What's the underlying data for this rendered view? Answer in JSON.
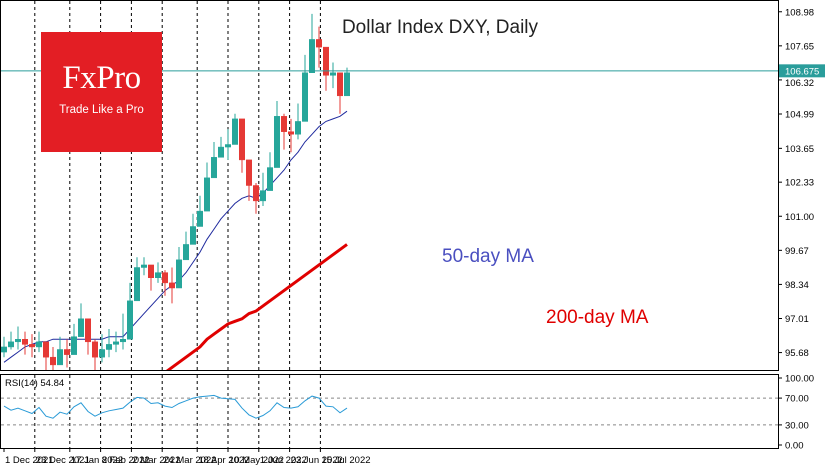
{
  "brand": {
    "logo_text": "FxPro",
    "tagline": "Trade Like a Pro",
    "color": "#e31e24"
  },
  "chart_data": [
    {
      "type": "candlestick",
      "title": "Dollar Index DXY, Daily",
      "x": [
        "2021-12-01",
        "2021-12-06",
        "2021-12-11",
        "2021-12-16",
        "2021-12-21",
        "2021-12-26",
        "2021-12-31",
        "2022-01-05",
        "2022-01-10",
        "2022-01-15",
        "2022-01-20",
        "2022-01-25",
        "2022-01-30",
        "2022-02-04",
        "2022-02-09",
        "2022-02-14",
        "2022-02-19",
        "2022-02-24",
        "2022-03-01",
        "2022-03-06",
        "2022-03-11",
        "2022-03-16",
        "2022-03-21",
        "2022-03-26",
        "2022-03-31",
        "2022-04-05",
        "2022-04-10",
        "2022-04-15",
        "2022-04-20",
        "2022-04-25",
        "2022-04-30",
        "2022-05-05",
        "2022-05-10",
        "2022-05-15",
        "2022-05-20",
        "2022-05-25",
        "2022-05-30",
        "2022-06-04",
        "2022-06-09",
        "2022-06-14",
        "2022-06-19",
        "2022-06-24",
        "2022-06-29",
        "2022-07-04",
        "2022-07-09",
        "2022-07-14",
        "2022-07-19",
        "2022-07-24",
        "2022-07-29",
        "2022-08-03"
      ],
      "close": [
        95.9,
        96.1,
        96.2,
        96.0,
        95.9,
        96.1,
        95.5,
        95.2,
        95.8,
        95.6,
        96.3,
        97.0,
        96.1,
        95.5,
        95.8,
        96.0,
        96.1,
        96.2,
        97.7,
        99.0,
        99.1,
        98.6,
        98.8,
        98.4,
        98.2,
        99.3,
        99.9,
        100.6,
        101.2,
        102.5,
        103.3,
        103.7,
        103.8,
        104.8,
        103.2,
        102.2,
        101.6,
        102.0,
        102.9,
        104.9,
        104.3,
        104.2,
        104.7,
        106.6,
        107.9,
        107.6,
        106.5,
        106.6,
        105.7,
        106.6
      ],
      "high": [
        96.3,
        96.5,
        96.7,
        96.5,
        96.4,
        96.5,
        96.0,
        95.9,
        96.3,
        96.2,
        96.8,
        97.6,
        96.8,
        96.2,
        96.4,
        96.6,
        96.5,
        97.2,
        98.4,
        99.4,
        99.4,
        99.0,
        99.2,
        98.9,
        99.0,
        99.8,
        100.4,
        101.1,
        101.8,
        103.1,
        103.9,
        104.1,
        104.4,
        105.0,
        104.3,
        102.9,
        102.3,
        102.7,
        103.5,
        105.5,
        105.0,
        104.8,
        105.4,
        107.3,
        108.9,
        108.4,
        107.3,
        107.0,
        106.5,
        106.8
      ],
      "low": [
        95.5,
        95.8,
        95.8,
        95.6,
        95.5,
        95.7,
        95.0,
        94.8,
        95.2,
        95.1,
        95.8,
        96.4,
        95.6,
        95.0,
        95.3,
        95.5,
        95.7,
        95.8,
        97.1,
        98.6,
        98.7,
        98.1,
        98.4,
        97.9,
        97.6,
        98.8,
        99.4,
        100.2,
        100.7,
        101.9,
        102.7,
        103.3,
        103.2,
        104.2,
        102.7,
        101.6,
        101.1,
        101.4,
        102.3,
        104.2,
        103.6,
        103.5,
        104.0,
        105.9,
        107.3,
        106.8,
        105.9,
        106.0,
        105.0,
        105.8
      ],
      "ma50": [
        95.3,
        95.5,
        95.7,
        95.9,
        96.0,
        96.1,
        96.1,
        96.2,
        96.2,
        96.2,
        96.2,
        96.2,
        96.2,
        96.2,
        96.2,
        96.3,
        96.3,
        96.3,
        96.6,
        96.9,
        97.2,
        97.5,
        97.8,
        98.1,
        98.3,
        98.5,
        98.8,
        99.2,
        99.6,
        100.1,
        100.5,
        100.9,
        101.2,
        101.5,
        101.7,
        101.8,
        101.7,
        101.9,
        102.2,
        102.5,
        102.8,
        103.2,
        103.5,
        103.9,
        104.2,
        104.5,
        104.7,
        104.8,
        104.9,
        105.1
      ],
      "ma200": [
        91.8,
        92.0,
        92.2,
        92.4,
        92.5,
        92.7,
        92.8,
        92.9,
        93.1,
        93.2,
        93.3,
        93.4,
        93.5,
        93.6,
        93.7,
        93.8,
        93.9,
        94.0,
        94.1,
        94.3,
        94.5,
        94.7,
        94.8,
        94.9,
        95.1,
        95.3,
        95.5,
        95.7,
        95.9,
        96.2,
        96.4,
        96.6,
        96.8,
        96.9,
        97.0,
        97.2,
        97.3,
        97.5,
        97.7,
        97.9,
        98.1,
        98.3,
        98.5,
        98.7,
        98.9,
        99.1,
        99.3,
        99.5,
        99.7,
        99.9
      ],
      "ylim": [
        95.0,
        109.4
      ],
      "y_ticks": [
        "108.98",
        "107.65",
        "106.32",
        "104.99",
        "103.65",
        "102.33",
        "101.00",
        "99.67",
        "98.34",
        "97.01",
        "95.68"
      ],
      "current_price": "106.675",
      "x_ticks": [
        "1 Dec 2021",
        "23 Dec 2021",
        "17 Jan 2022",
        "8 Feb 2022",
        "2 Mar 2022",
        "24 Mar 2022",
        "18 Apr 2022",
        "10 May 2022",
        "1 Jun 2022",
        "23 Jun 2022",
        "15 Jul 2022"
      ],
      "annotations": [
        "50-day MA",
        "200-day MA"
      ],
      "colors": {
        "up": "#26a69a",
        "down": "#e53935",
        "ma50": "#1f2a9e",
        "ma200": "#e00000",
        "price_line": "#2a9d9b"
      }
    },
    {
      "type": "line",
      "title": "RSI(14) 54.84",
      "x_note": "shares dates with the price panel",
      "rsi": [
        58,
        52,
        55,
        51,
        47,
        56,
        43,
        40,
        49,
        46,
        57,
        63,
        50,
        43,
        48,
        51,
        53,
        55,
        64,
        71,
        70,
        62,
        63,
        58,
        56,
        62,
        66,
        70,
        72,
        73,
        74,
        70,
        69,
        68,
        55,
        45,
        40,
        44,
        51,
        63,
        56,
        55,
        57,
        66,
        73,
        70,
        58,
        57,
        48,
        55
      ],
      "ylim": [
        0,
        100
      ],
      "y_ticks": [
        "100.00",
        "70.00",
        "30.00",
        "0.00"
      ],
      "color": "#2a9bd7"
    }
  ]
}
